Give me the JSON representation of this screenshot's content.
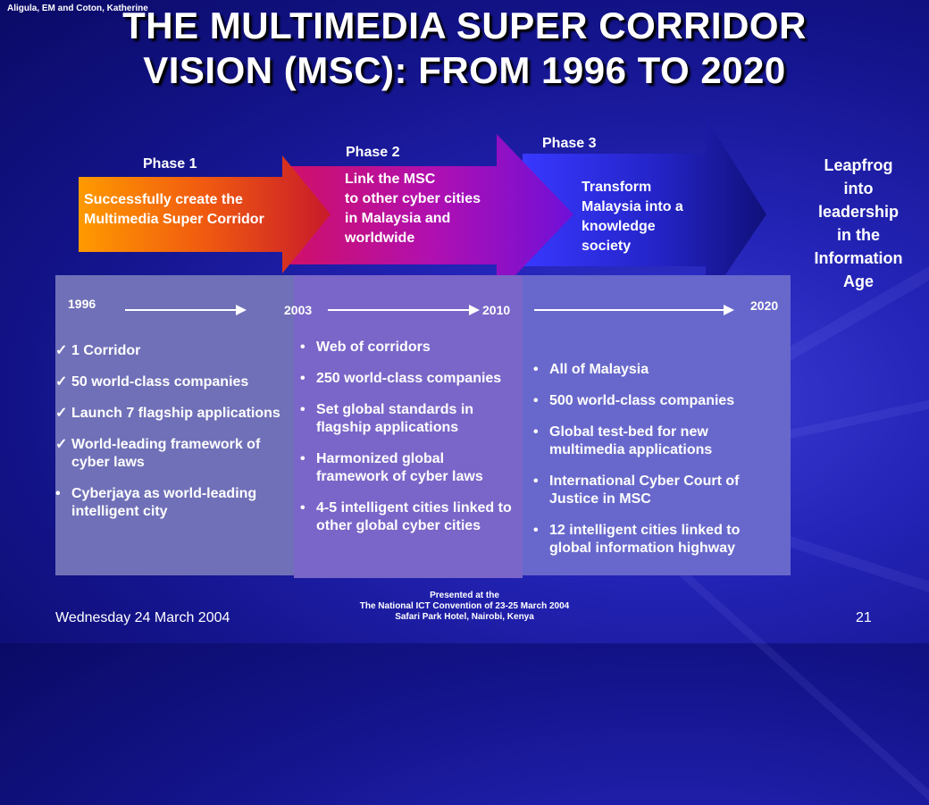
{
  "author": "Aligula, EM and Coton, Katherine",
  "title": {
    "line1": "THE MULTIMEDIA SUPER CORRIDOR",
    "line2": "VISION (MSC):  FROM 1996 TO 2020"
  },
  "phases": [
    {
      "label": "Phase 1",
      "text": [
        "Successfully create the",
        "Multimedia Super Corridor"
      ]
    },
    {
      "label": "Phase 2",
      "text": [
        "Link the MSC",
        "to other cyber cities",
        "in Malaysia and",
        "worldwide"
      ]
    },
    {
      "label": "Phase 3",
      "text": [
        "Transform",
        "Malaysia into a",
        "knowledge",
        "society"
      ]
    }
  ],
  "leapfrog": [
    "Leapfrog",
    "into",
    "leadership",
    "in the",
    "Information",
    "Age"
  ],
  "years": {
    "y1996": "1996",
    "y2003": "2003",
    "y2010": "2010",
    "y2020": "2020"
  },
  "columns": [
    {
      "items": [
        {
          "mark": "✓",
          "text": "1 Corridor"
        },
        {
          "mark": "✓",
          "text": "50 world-class companies"
        },
        {
          "mark": "✓",
          "text": "Launch 7 flagship applications"
        },
        {
          "mark": "✓",
          "text": "World-leading framework of cyber laws"
        },
        {
          "mark": "•",
          "text": "Cyberjaya as world-leading intelligent city"
        }
      ]
    },
    {
      "items": [
        {
          "mark": "•",
          "text": "Web of corridors"
        },
        {
          "mark": "•",
          "text": "250 world-class companies"
        },
        {
          "mark": "•",
          "text": "Set global standards in flagship applications"
        },
        {
          "mark": "•",
          "text": "Harmonized global framework of cyber laws"
        },
        {
          "mark": "•",
          "text": "4-5 intelligent cities linked to other global cyber cities"
        }
      ]
    },
    {
      "items": [
        {
          "mark": "•",
          "text": "All of Malaysia"
        },
        {
          "mark": "•",
          "text": "500 world-class companies"
        },
        {
          "mark": "•",
          "text": "Global test-bed for new multimedia applications"
        },
        {
          "mark": "•",
          "text": "International Cyber Court of Justice in MSC"
        },
        {
          "mark": "•",
          "text": "12 intelligent cities linked to global information highway"
        }
      ]
    }
  ],
  "footer": {
    "date": "Wednesday 24 March 2004",
    "presented": [
      "Presented at the",
      "The National ICT Convention of 23-25 March 2004",
      "Safari Park Hotel, Nairobi, Kenya"
    ],
    "page": "21"
  }
}
